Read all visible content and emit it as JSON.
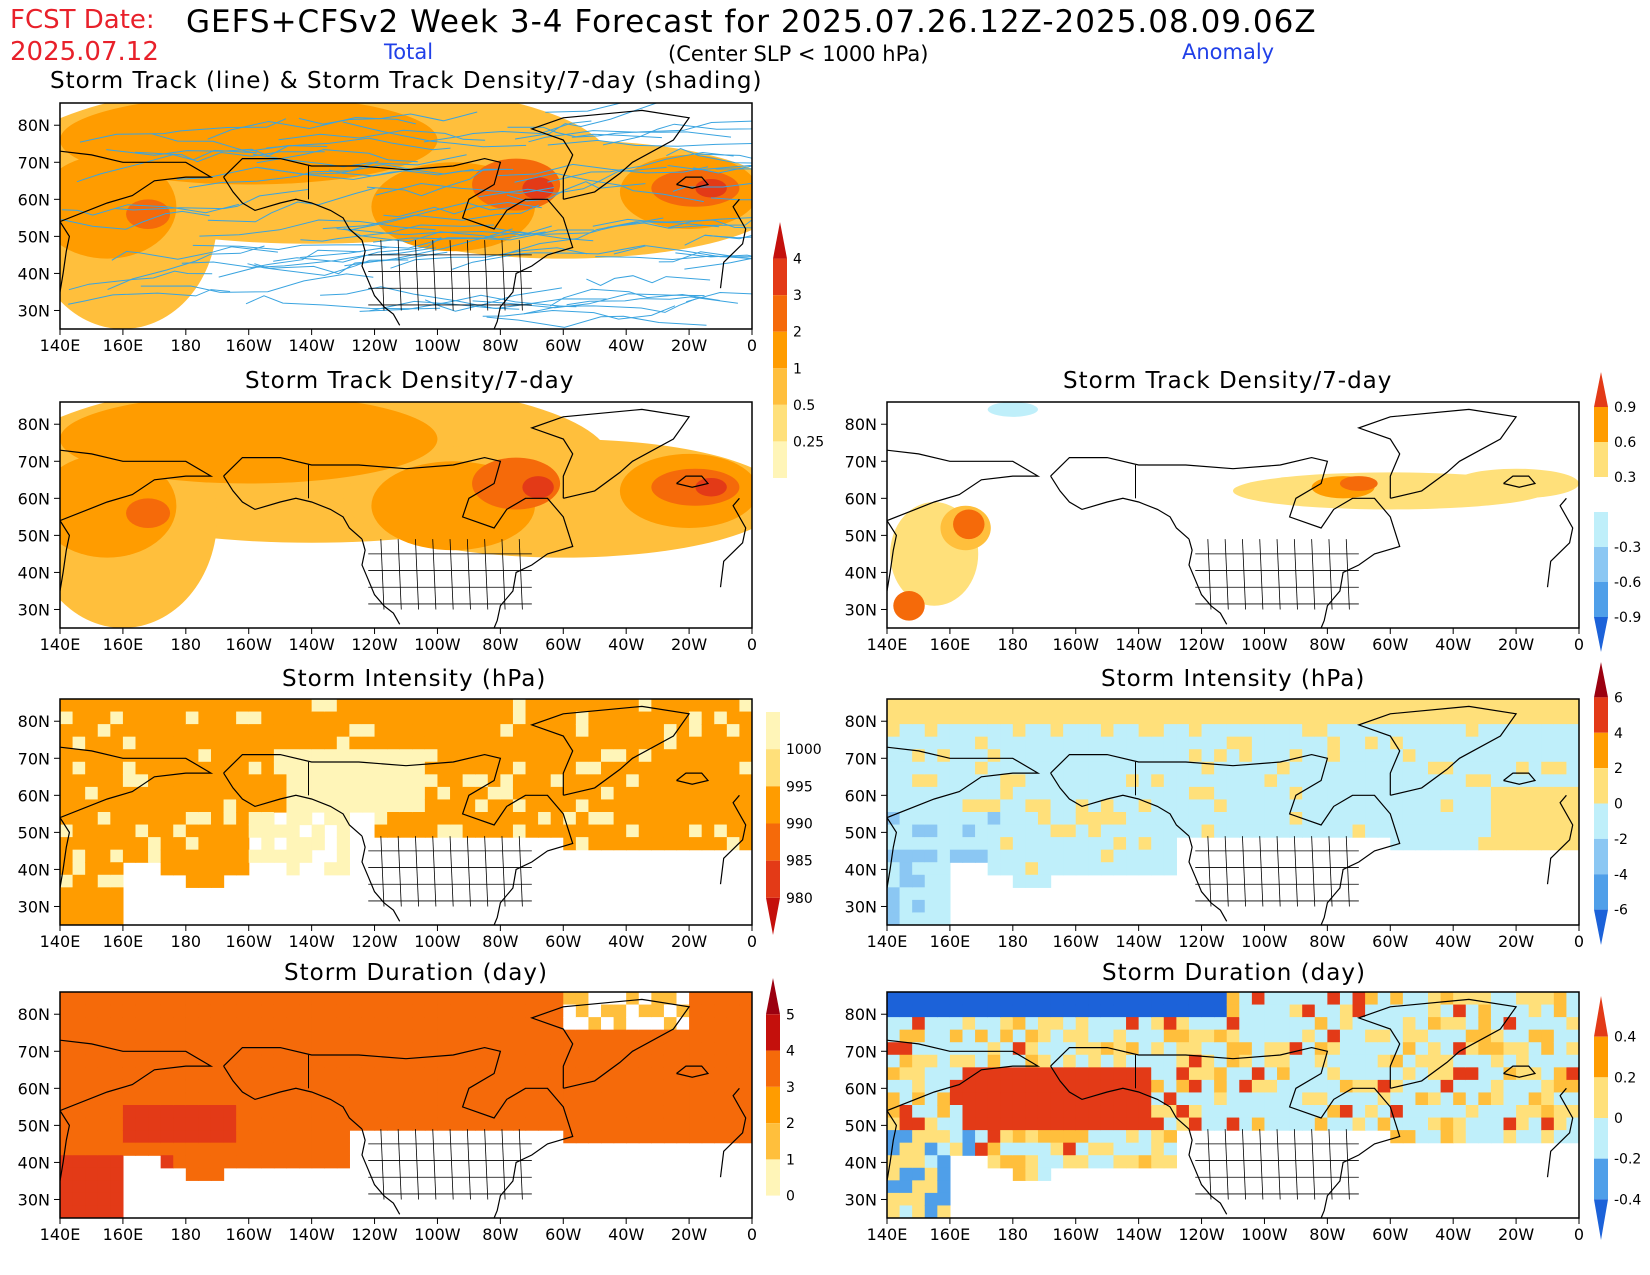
{
  "header": {
    "fcst_label": "FCST Date:",
    "fcst_date": "2025.07.12",
    "title": "GEFS+CFSv2 Week 3-4 Forecast for 2025.07.26.12Z-2025.08.09.06Z",
    "total_label": "Total",
    "subtitle": "(Center SLP < 1000 hPa)",
    "anomaly_label": "Anomaly"
  },
  "colors": {
    "pale_yellow": "#fff5b8",
    "yellow": "#ffe07a",
    "light_orange": "#ffbf3c",
    "orange": "#ff9c00",
    "dark_orange": "#f56a0a",
    "red": "#e33a17",
    "dark_red": "#c4100c",
    "maroon": "#9b0010",
    "light_cyan": "#bfeffa",
    "light_blue": "#8bc7f3",
    "blue": "#4f9fe9",
    "dark_blue": "#1c62d9",
    "track_line": "#3aa4e0"
  },
  "chart_data": [
    {
      "type": "heatmap",
      "title": "Storm Track (line) & Storm Track Density/7-day (shading)",
      "column": "Total",
      "x_ticks": [
        "140E",
        "160E",
        "180",
        "160W",
        "140W",
        "120W",
        "100W",
        "80W",
        "60W",
        "40W",
        "20W",
        "0"
      ],
      "y_ticks": [
        "80N",
        "70N",
        "60N",
        "50N",
        "40N",
        "30N"
      ],
      "overlay": "storm track lines",
      "colorbar": {
        "levels": [
          "0.25",
          "0.5",
          "1",
          "2",
          "3",
          "4"
        ]
      },
      "maxima": [
        {
          "region": "Hudson Bay / Labrador",
          "value": 3
        },
        {
          "region": "North Atlantic south of Iceland",
          "value": 3
        },
        {
          "region": "Northwest Pacific",
          "value": 2
        }
      ]
    },
    {
      "type": "heatmap",
      "title": "Storm Track Density/7-day",
      "column": "Total",
      "x_ticks": [
        "140E",
        "160E",
        "180",
        "160W",
        "140W",
        "120W",
        "100W",
        "80W",
        "60W",
        "40W",
        "20W",
        "0"
      ],
      "y_ticks": [
        "80N",
        "70N",
        "60N",
        "50N",
        "40N",
        "30N"
      ],
      "colorbar": {
        "levels": [
          "0.25",
          "0.5",
          "1",
          "2",
          "3",
          "4"
        ]
      },
      "maxima": [
        {
          "region": "Hudson Bay / Labrador",
          "value": 3
        },
        {
          "region": "North Atlantic south of Iceland",
          "value": 3
        },
        {
          "region": "Northwest Pacific",
          "value": 2
        }
      ]
    },
    {
      "type": "heatmap",
      "title": "Storm Track Density/7-day",
      "column": "Anomaly",
      "x_ticks": [
        "140E",
        "160E",
        "180",
        "160W",
        "140W",
        "120W",
        "100W",
        "80W",
        "60W",
        "40W",
        "20W",
        "0"
      ],
      "y_ticks": [
        "80N",
        "70N",
        "60N",
        "50N",
        "40N",
        "30N"
      ],
      "colorbar": {
        "levels": [
          "0.9",
          "0.6",
          "0.3",
          "-0.3",
          "-0.6",
          "-0.9"
        ]
      },
      "maxima": [
        {
          "region": "Labrador",
          "value": 0.6
        },
        {
          "region": "Northwest Pacific",
          "value": 0.6
        }
      ]
    },
    {
      "type": "heatmap",
      "title": "Storm Intensity (hPa)",
      "column": "Total",
      "x_ticks": [
        "140E",
        "160E",
        "180",
        "160W",
        "140W",
        "120W",
        "100W",
        "80W",
        "60W",
        "40W",
        "20W",
        "0"
      ],
      "y_ticks": [
        "80N",
        "70N",
        "60N",
        "50N",
        "40N",
        "30N"
      ],
      "colorbar": {
        "levels": [
          "1000",
          "995",
          "990",
          "985",
          "980"
        ]
      },
      "dominant_range": [
        990,
        995
      ]
    },
    {
      "type": "heatmap",
      "title": "Storm Intensity (hPa)",
      "column": "Anomaly",
      "x_ticks": [
        "140E",
        "160E",
        "180",
        "160W",
        "140W",
        "120W",
        "100W",
        "80W",
        "60W",
        "40W",
        "20W",
        "0"
      ],
      "y_ticks": [
        "80N",
        "70N",
        "60N",
        "50N",
        "40N",
        "30N"
      ],
      "colorbar": {
        "levels": [
          "6",
          "4",
          "2",
          "0",
          "-2",
          "-4",
          "-6"
        ]
      },
      "dominant_range": [
        -2,
        2
      ]
    },
    {
      "type": "heatmap",
      "title": "Storm Duration (day)",
      "column": "Total",
      "x_ticks": [
        "140E",
        "160E",
        "180",
        "160W",
        "140W",
        "120W",
        "100W",
        "80W",
        "60W",
        "40W",
        "20W",
        "0"
      ],
      "y_ticks": [
        "80N",
        "70N",
        "60N",
        "50N",
        "40N",
        "30N"
      ],
      "colorbar": {
        "levels": [
          "5",
          "4",
          "3",
          "2",
          "1",
          "0"
        ]
      },
      "dominant_range": [
        3,
        4
      ]
    },
    {
      "type": "heatmap",
      "title": "Storm Duration (day)",
      "column": "Anomaly",
      "x_ticks": [
        "140E",
        "160E",
        "180",
        "160W",
        "140W",
        "120W",
        "100W",
        "80W",
        "60W",
        "40W",
        "20W",
        "0"
      ],
      "y_ticks": [
        "80N",
        "70N",
        "60N",
        "50N",
        "40N",
        "30N"
      ],
      "colorbar": {
        "levels": [
          "0.4",
          "0.2",
          "0",
          "-0.2",
          "-0.4"
        ]
      },
      "dominant_range": [
        -0.4,
        0.4
      ]
    }
  ]
}
